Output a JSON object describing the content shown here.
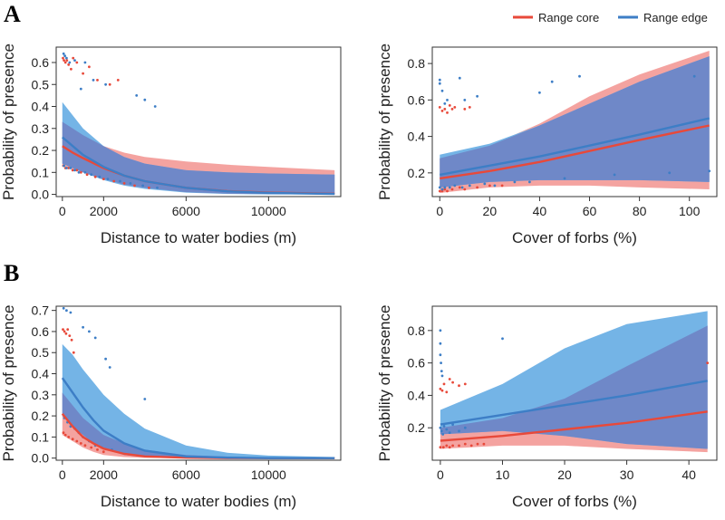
{
  "figure": {
    "panel_labels": [
      "A",
      "B"
    ],
    "legend": [
      {
        "name": "Range core",
        "color": "#e8493a"
      },
      {
        "name": "Range edge",
        "color": "#3d7ec6"
      }
    ]
  },
  "colors": {
    "core_line": "#e8493a",
    "edge_line": "#3d7ec6",
    "core_band": "#f4a3a0",
    "edge_band": "#74b4e6",
    "overlap_band": "#6f88c8",
    "frame": "#333333"
  },
  "chart_data": [
    {
      "type": "line",
      "panel": "A",
      "title": "",
      "xlabel": "Distance to water bodies (m)",
      "ylabel": "Probability of presence",
      "xlim": [
        -300,
        13500
      ],
      "ylim": [
        -0.01,
        0.67
      ],
      "xticks": [
        0,
        2000,
        6000,
        10000
      ],
      "xtick_labels": [
        "0",
        "2000",
        "6000",
        "10000"
      ],
      "yticks": [
        0.0,
        0.1,
        0.2,
        0.3,
        0.4,
        0.5,
        0.6
      ],
      "ytick_labels": [
        "0.0",
        "0.1",
        "0.2",
        "0.3",
        "0.4",
        "0.5",
        "0.6"
      ],
      "x": [
        0,
        500,
        1000,
        2000,
        3000,
        4000,
        6000,
        8000,
        10000,
        13200
      ],
      "series": [
        {
          "name": "Range core",
          "values": [
            0.22,
            0.19,
            0.165,
            0.12,
            0.085,
            0.06,
            0.03,
            0.015,
            0.008,
            0.003
          ],
          "lower": [
            0.13,
            0.115,
            0.1,
            0.07,
            0.045,
            0.03,
            0.01,
            0.003,
            0.001,
            0.0
          ],
          "upper": [
            0.33,
            0.3,
            0.27,
            0.22,
            0.19,
            0.17,
            0.15,
            0.135,
            0.125,
            0.11
          ]
        },
        {
          "name": "Range edge",
          "values": [
            0.26,
            0.22,
            0.18,
            0.125,
            0.085,
            0.06,
            0.03,
            0.014,
            0.007,
            0.002
          ],
          "lower": [
            0.14,
            0.12,
            0.1,
            0.065,
            0.04,
            0.025,
            0.008,
            0.002,
            0.0,
            0.0
          ],
          "upper": [
            0.42,
            0.36,
            0.3,
            0.22,
            0.17,
            0.14,
            0.11,
            0.1,
            0.095,
            0.09
          ]
        }
      ],
      "points": [
        {
          "series": "Range core",
          "x": [
            30,
            80,
            150,
            220,
            300,
            420,
            520,
            700,
            1000,
            1300,
            1700,
            2300,
            2700
          ],
          "y": [
            0.62,
            0.61,
            0.6,
            0.61,
            0.59,
            0.57,
            0.62,
            0.6,
            0.55,
            0.58,
            0.52,
            0.5,
            0.52
          ]
        },
        {
          "series": "Range edge",
          "x": [
            60,
            120,
            200,
            350,
            600,
            900,
            1100,
            1500,
            2100,
            3600,
            4000,
            4500
          ],
          "y": [
            0.64,
            0.63,
            0.62,
            0.6,
            0.61,
            0.48,
            0.6,
            0.52,
            0.5,
            0.45,
            0.43,
            0.4
          ]
        },
        {
          "series": "Range core",
          "x": [
            50,
            150,
            300,
            500,
            700,
            900,
            1200,
            1600,
            2000,
            2500,
            3000,
            3500,
            4200
          ],
          "y": [
            0.13,
            0.12,
            0.12,
            0.11,
            0.11,
            0.1,
            0.09,
            0.08,
            0.07,
            0.06,
            0.05,
            0.04,
            0.03
          ]
        },
        {
          "series": "Range edge",
          "x": [
            80,
            200,
            400,
            600,
            800,
            1100,
            1400,
            1800,
            2200,
            2800,
            3300,
            3900,
            4600
          ],
          "y": [
            0.13,
            0.12,
            0.12,
            0.11,
            0.1,
            0.1,
            0.09,
            0.08,
            0.07,
            0.06,
            0.05,
            0.04,
            0.03
          ]
        }
      ]
    },
    {
      "type": "line",
      "panel": "A",
      "title": "",
      "xlabel": "Cover of forbs (%)",
      "ylabel": "Probability of presence",
      "xlim": [
        -3,
        111
      ],
      "ylim": [
        0.07,
        0.89
      ],
      "xticks": [
        0,
        20,
        40,
        60,
        80,
        100
      ],
      "xtick_labels": [
        "0",
        "20",
        "40",
        "60",
        "80",
        "100"
      ],
      "yticks": [
        0.2,
        0.4,
        0.6,
        0.8
      ],
      "ytick_labels": [
        "0.2",
        "0.4",
        "0.6",
        "0.8"
      ],
      "x": [
        0,
        20,
        40,
        60,
        80,
        108
      ],
      "series": [
        {
          "name": "Range core",
          "values": [
            0.17,
            0.21,
            0.26,
            0.32,
            0.38,
            0.46
          ],
          "lower": [
            0.09,
            0.12,
            0.13,
            0.13,
            0.12,
            0.11
          ],
          "upper": [
            0.28,
            0.35,
            0.47,
            0.62,
            0.74,
            0.87
          ]
        },
        {
          "name": "Range edge",
          "values": [
            0.19,
            0.24,
            0.29,
            0.35,
            0.41,
            0.5
          ],
          "lower": [
            0.12,
            0.15,
            0.16,
            0.16,
            0.16,
            0.15
          ],
          "upper": [
            0.3,
            0.36,
            0.46,
            0.58,
            0.7,
            0.84
          ]
        }
      ],
      "points": [
        {
          "series": "Range core",
          "x": [
            0,
            1,
            2,
            3,
            4,
            5,
            6,
            10,
            12
          ],
          "y": [
            0.56,
            0.54,
            0.55,
            0.53,
            0.57,
            0.55,
            0.56,
            0.55,
            0.56
          ]
        },
        {
          "series": "Range edge",
          "x": [
            0,
            0,
            1,
            2,
            3,
            8,
            10,
            15,
            40,
            45,
            56,
            102
          ],
          "y": [
            0.71,
            0.69,
            0.65,
            0.58,
            0.6,
            0.72,
            0.6,
            0.62,
            0.64,
            0.7,
            0.73,
            0.73
          ]
        },
        {
          "series": "Range core",
          "x": [
            0,
            1,
            2,
            3,
            5,
            8,
            10,
            15,
            20,
            25
          ],
          "y": [
            0.1,
            0.1,
            0.11,
            0.1,
            0.11,
            0.12,
            0.11,
            0.12,
            0.13,
            0.13
          ]
        },
        {
          "series": "Range edge",
          "x": [
            0,
            1,
            2,
            4,
            6,
            9,
            12,
            18,
            22,
            30,
            36,
            50,
            70,
            92,
            108
          ],
          "y": [
            0.12,
            0.11,
            0.12,
            0.12,
            0.13,
            0.12,
            0.13,
            0.14,
            0.13,
            0.15,
            0.15,
            0.17,
            0.19,
            0.2,
            0.21
          ]
        }
      ]
    },
    {
      "type": "line",
      "panel": "B",
      "title": "",
      "xlabel": "Distance to water bodies (m)",
      "ylabel": "Probability of presence",
      "xlim": [
        -300,
        13500
      ],
      "ylim": [
        -0.01,
        0.72
      ],
      "xticks": [
        0,
        2000,
        6000,
        10000
      ],
      "xtick_labels": [
        "0",
        "2000",
        "6000",
        "10000"
      ],
      "yticks": [
        0.0,
        0.1,
        0.2,
        0.3,
        0.4,
        0.5,
        0.6,
        0.7
      ],
      "ytick_labels": [
        "0.0",
        "0.1",
        "0.2",
        "0.3",
        "0.4",
        "0.5",
        "0.6",
        "0.7"
      ],
      "x": [
        0,
        500,
        1000,
        1500,
        2000,
        3000,
        4000,
        6000,
        8000,
        10000,
        13200
      ],
      "series": [
        {
          "name": "Range core",
          "values": [
            0.21,
            0.15,
            0.1,
            0.07,
            0.045,
            0.02,
            0.008,
            0.002,
            0.0,
            0.0,
            0.0
          ],
          "lower": [
            0.11,
            0.08,
            0.05,
            0.03,
            0.015,
            0.005,
            0.001,
            0.0,
            0.0,
            0.0,
            0.0
          ],
          "upper": [
            0.31,
            0.25,
            0.19,
            0.15,
            0.11,
            0.07,
            0.04,
            0.015,
            0.007,
            0.003,
            0.0
          ]
        },
        {
          "name": "Range edge",
          "values": [
            0.38,
            0.31,
            0.24,
            0.18,
            0.13,
            0.07,
            0.035,
            0.008,
            0.002,
            0.0,
            0.0
          ],
          "lower": [
            0.2,
            0.15,
            0.11,
            0.07,
            0.045,
            0.015,
            0.005,
            0.0,
            0.0,
            0.0,
            0.0
          ],
          "upper": [
            0.54,
            0.49,
            0.42,
            0.36,
            0.3,
            0.21,
            0.14,
            0.06,
            0.025,
            0.012,
            0.005
          ]
        }
      ],
      "points": [
        {
          "series": "Range core",
          "x": [
            30,
            100,
            180,
            260,
            350,
            450,
            550
          ],
          "y": [
            0.61,
            0.6,
            0.59,
            0.61,
            0.58,
            0.56,
            0.5
          ]
        },
        {
          "series": "Range edge",
          "x": [
            60,
            200,
            400,
            1000,
            1300,
            1600,
            2100,
            2300,
            4000
          ],
          "y": [
            0.71,
            0.7,
            0.69,
            0.62,
            0.6,
            0.57,
            0.47,
            0.43,
            0.28
          ]
        },
        {
          "series": "Range core",
          "x": [
            50,
            150,
            300,
            500,
            700,
            900,
            1100,
            1400,
            1700,
            2000
          ],
          "y": [
            0.12,
            0.11,
            0.1,
            0.09,
            0.08,
            0.07,
            0.06,
            0.05,
            0.04,
            0.03
          ]
        },
        {
          "series": "Range edge",
          "x": [
            100,
            250,
            400,
            600,
            800,
            1000,
            1300,
            1600,
            1900,
            2400
          ],
          "y": [
            0.19,
            0.17,
            0.15,
            0.14,
            0.12,
            0.1,
            0.08,
            0.06,
            0.05,
            0.04
          ]
        }
      ]
    },
    {
      "type": "line",
      "panel": "B",
      "title": "",
      "xlabel": "Cover of forbs (%)",
      "ylabel": "Probability of presence",
      "xlim": [
        -1.3,
        44.5
      ],
      "ylim": [
        0.0,
        0.95
      ],
      "xticks": [
        0,
        10,
        20,
        30,
        40
      ],
      "xtick_labels": [
        "0",
        "10",
        "20",
        "30",
        "40"
      ],
      "yticks": [
        0.2,
        0.4,
        0.6,
        0.8
      ],
      "ytick_labels": [
        "0.2",
        "0.4",
        "0.6",
        "0.8"
      ],
      "x": [
        0,
        10,
        20,
        30,
        43
      ],
      "series": [
        {
          "name": "Range core",
          "values": [
            0.12,
            0.15,
            0.19,
            0.23,
            0.3
          ],
          "lower": [
            0.07,
            0.09,
            0.09,
            0.07,
            0.05
          ],
          "upper": [
            0.2,
            0.26,
            0.38,
            0.58,
            0.83
          ]
        },
        {
          "name": "Range edge",
          "values": [
            0.22,
            0.28,
            0.34,
            0.4,
            0.49
          ],
          "lower": [
            0.16,
            0.18,
            0.15,
            0.1,
            0.07
          ],
          "upper": [
            0.31,
            0.47,
            0.69,
            0.84,
            0.92
          ]
        }
      ],
      "points": [
        {
          "series": "Range core",
          "x": [
            0,
            0.3,
            0.6,
            1,
            1.5,
            2,
            3,
            4,
            43
          ],
          "y": [
            0.44,
            0.43,
            0.47,
            0.42,
            0.5,
            0.48,
            0.46,
            0.47,
            0.6
          ]
        },
        {
          "series": "Range edge",
          "x": [
            0,
            0,
            0,
            0.1,
            0.2,
            0.3,
            10
          ],
          "y": [
            0.8,
            0.72,
            0.65,
            0.6,
            0.55,
            0.52,
            0.75
          ]
        },
        {
          "series": "Range core",
          "x": [
            0,
            0.5,
            1,
            1.5,
            2,
            3,
            4,
            5,
            6,
            7
          ],
          "y": [
            0.08,
            0.08,
            0.09,
            0.08,
            0.09,
            0.09,
            0.1,
            0.09,
            0.1,
            0.1
          ]
        },
        {
          "series": "Range edge",
          "x": [
            0,
            0.2,
            0.4,
            0.6,
            1,
            1.5,
            2,
            3,
            4
          ],
          "y": [
            0.2,
            0.18,
            0.16,
            0.21,
            0.19,
            0.17,
            0.22,
            0.18,
            0.2
          ]
        }
      ]
    }
  ]
}
